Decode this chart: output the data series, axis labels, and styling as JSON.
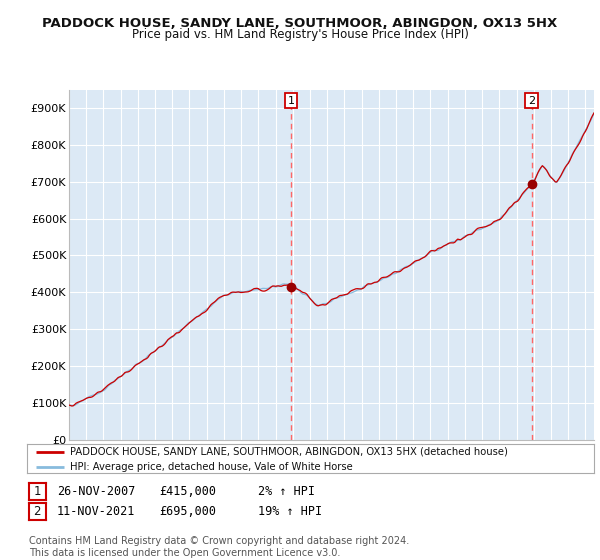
{
  "title": "PADDOCK HOUSE, SANDY LANE, SOUTHMOOR, ABINGDON, OX13 5HX",
  "subtitle": "Price paid vs. HM Land Registry's House Price Index (HPI)",
  "bg_color": "#dce9f5",
  "grid_color": "#ffffff",
  "ylabel_ticks": [
    "£0",
    "£100K",
    "£200K",
    "£300K",
    "£400K",
    "£500K",
    "£600K",
    "£700K",
    "£800K",
    "£900K"
  ],
  "ylabel_values": [
    0,
    100000,
    200000,
    300000,
    400000,
    500000,
    600000,
    700000,
    800000,
    900000
  ],
  "ylim": [
    0,
    950000
  ],
  "sale1_date": 2007.9,
  "sale1_price": 415000,
  "sale1_label": "1",
  "sale1_date_str": "26-NOV-2007",
  "sale1_price_str": "£415,000",
  "sale1_hpi_str": "2% ↑ HPI",
  "sale2_date": 2021.87,
  "sale2_price": 695000,
  "sale2_label": "2",
  "sale2_date_str": "11-NOV-2021",
  "sale2_price_str": "£695,000",
  "sale2_hpi_str": "19% ↑ HPI",
  "hpi_line_color": "#88bbdd",
  "price_line_color": "#cc0000",
  "marker_color": "#990000",
  "dashed_line_color": "#ff6666",
  "legend_label1": "PADDOCK HOUSE, SANDY LANE, SOUTHMOOR, ABINGDON, OX13 5HX (detached house)",
  "legend_label2": "HPI: Average price, detached house, Vale of White Horse",
  "footnote": "Contains HM Land Registry data © Crown copyright and database right 2024.\nThis data is licensed under the Open Government Licence v3.0."
}
